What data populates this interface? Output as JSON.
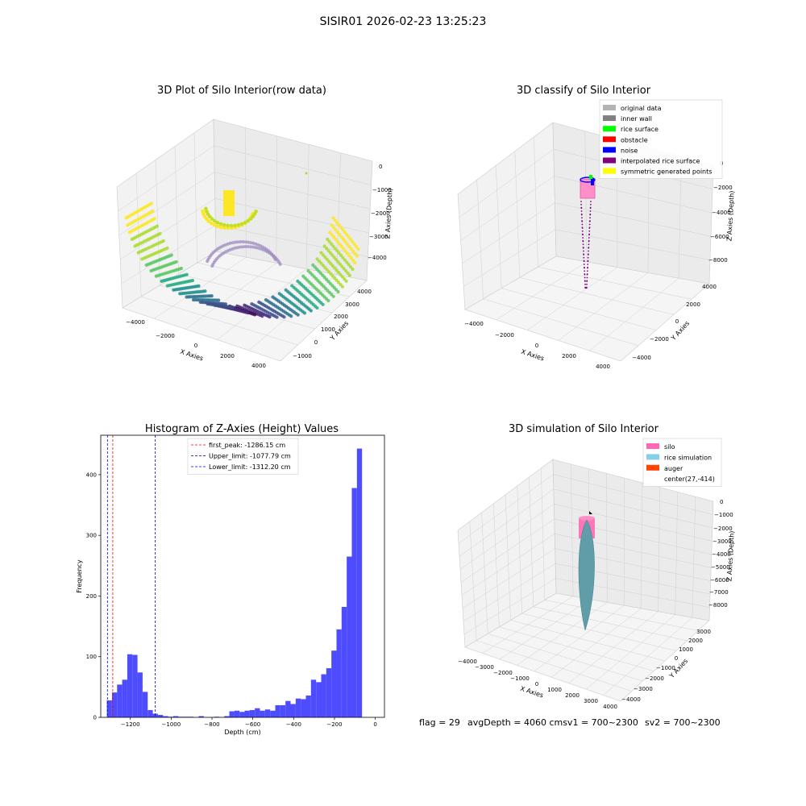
{
  "figure": {
    "suptitle": "SISIR01 2026-02-23 13:25:23"
  },
  "chart_data": [
    {
      "type": "scatter",
      "subtype": "3d",
      "title": "3D Plot of Silo Interior(row data)",
      "xlabel": "X Axies",
      "ylabel": "Y Axies",
      "zlabel": "Z Axies (Depth)",
      "x_ticks": [
        "−4000",
        "−2000",
        "0",
        "2000",
        "4000"
      ],
      "y_ticks": [
        "−1000",
        "0",
        "1000",
        "2000",
        "3000",
        "4000"
      ],
      "z_ticks": [
        "0",
        "−1000",
        "−2000",
        "−3000",
        "−4000"
      ],
      "colormap": "viridis",
      "grid": true
    },
    {
      "type": "scatter",
      "subtype": "3d",
      "title": "3D classify of Silo Interior",
      "xlabel": "X Axies",
      "ylabel": "Y Axies",
      "zlabel": "Z Axies (Depth)",
      "x_ticks": [
        "−4000",
        "−2000",
        "0",
        "2000",
        "4000"
      ],
      "y_ticks": [
        "−4000",
        "−2000",
        "0",
        "2000",
        "4000"
      ],
      "z_ticks": [
        "0",
        "−2000",
        "−4000",
        "−6000",
        "−8000"
      ],
      "legend": [
        {
          "label": "original data",
          "color": "#b3b3b3"
        },
        {
          "label": "inner wall",
          "color": "#808080"
        },
        {
          "label": "rice surface",
          "color": "#00ff00"
        },
        {
          "label": "obstacle",
          "color": "#ff0000"
        },
        {
          "label": "noise",
          "color": "#0000ff"
        },
        {
          "label": "interpolated rice surface",
          "color": "#800080"
        },
        {
          "label": "symmetric generated points",
          "color": "#ffff00"
        }
      ],
      "legend_loc": "upper right",
      "grid": true
    },
    {
      "type": "bar",
      "subtype": "histogram",
      "title": "Histogram of Z-Axies (Height) Values",
      "xlabel": "Depth (cm)",
      "ylabel": "Frequency",
      "xlim": [
        -1345,
        45
      ],
      "ylim": [
        0,
        465
      ],
      "x_ticks": [
        -1200,
        -1000,
        -800,
        -600,
        -400,
        -200,
        0
      ],
      "x_tick_labels": [
        "−1200",
        "−1000",
        "−800",
        "−600",
        "−400",
        "−200",
        "0"
      ],
      "y_ticks": [
        0,
        100,
        200,
        300,
        400
      ],
      "bin_width": 25,
      "bins": [
        {
          "x": -1315,
          "count": 28
        },
        {
          "x": -1290,
          "count": 41
        },
        {
          "x": -1265,
          "count": 54
        },
        {
          "x": -1240,
          "count": 62
        },
        {
          "x": -1215,
          "count": 104
        },
        {
          "x": -1190,
          "count": 103
        },
        {
          "x": -1165,
          "count": 74
        },
        {
          "x": -1140,
          "count": 42
        },
        {
          "x": -1115,
          "count": 12
        },
        {
          "x": -1090,
          "count": 6
        },
        {
          "x": -1065,
          "count": 4
        },
        {
          "x": -1040,
          "count": 2
        },
        {
          "x": -1015,
          "count": 1
        },
        {
          "x": -990,
          "count": 2
        },
        {
          "x": -965,
          "count": 1
        },
        {
          "x": -940,
          "count": 1
        },
        {
          "x": -915,
          "count": 1
        },
        {
          "x": -865,
          "count": 2
        },
        {
          "x": -790,
          "count": 1
        },
        {
          "x": -740,
          "count": 2
        },
        {
          "x": -715,
          "count": 10
        },
        {
          "x": -690,
          "count": 11
        },
        {
          "x": -665,
          "count": 9
        },
        {
          "x": -640,
          "count": 11
        },
        {
          "x": -615,
          "count": 12
        },
        {
          "x": -590,
          "count": 15
        },
        {
          "x": -565,
          "count": 11
        },
        {
          "x": -540,
          "count": 13
        },
        {
          "x": -515,
          "count": 11
        },
        {
          "x": -490,
          "count": 20
        },
        {
          "x": -465,
          "count": 20
        },
        {
          "x": -440,
          "count": 27
        },
        {
          "x": -415,
          "count": 22
        },
        {
          "x": -390,
          "count": 31
        },
        {
          "x": -365,
          "count": 30
        },
        {
          "x": -340,
          "count": 36
        },
        {
          "x": -315,
          "count": 62
        },
        {
          "x": -290,
          "count": 58
        },
        {
          "x": -265,
          "count": 71
        },
        {
          "x": -240,
          "count": 81
        },
        {
          "x": -215,
          "count": 110
        },
        {
          "x": -190,
          "count": 145
        },
        {
          "x": -165,
          "count": 182
        },
        {
          "x": -140,
          "count": 265
        },
        {
          "x": -115,
          "count": 378
        },
        {
          "x": -90,
          "count": 443
        }
      ],
      "vlines": [
        {
          "x": -1286.15,
          "color": "#ff0000",
          "label": "first_peak: -1286.15 cm"
        },
        {
          "x": -1077.79,
          "color": "#00008b",
          "label": "Upper_limit: -1077.79 cm"
        },
        {
          "x": -1312.2,
          "color": "#0000ff",
          "label": "Lower_limit: -1312.20 cm"
        }
      ],
      "bar_color": "#4d4dff",
      "legend_loc": "upper center"
    },
    {
      "type": "scatter",
      "subtype": "3d",
      "title": "3D simulation of Silo Interior",
      "xlabel": "X Axies",
      "ylabel": "Y Axies",
      "zlabel": "Z Axies (Depth)",
      "x_ticks": [
        "−4000",
        "−3000",
        "−2000",
        "−1000",
        "0",
        "1000",
        "2000",
        "3000",
        "4000"
      ],
      "y_ticks": [
        "−4000",
        "−3000",
        "−2000",
        "−1000",
        "0",
        "1000",
        "2000",
        "3000"
      ],
      "z_ticks": [
        "0",
        "−1000",
        "−2000",
        "−3000",
        "−4000",
        "−5000",
        "−6000",
        "−7000",
        "−8000"
      ],
      "legend": [
        {
          "label": "silo",
          "color": "#ff69b4"
        },
        {
          "label": "rice simulation",
          "color": "#87ceeb"
        },
        {
          "label": "auger",
          "color": "#ff4500"
        },
        {
          "label": "center(27,-414)",
          "color": ""
        }
      ],
      "legend_loc": "upper right",
      "grid": true
    }
  ],
  "status_line": {
    "flag": "flag = 29",
    "avg_depth": "avgDepth = 4060 cmsv1 = 700~2300",
    "sv2": "sv2 = 700~2300"
  }
}
